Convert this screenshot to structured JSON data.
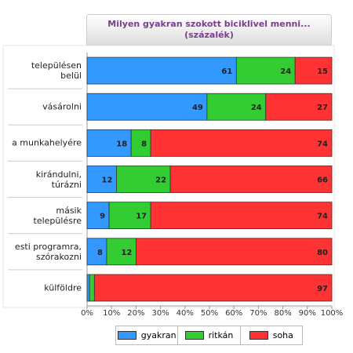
{
  "chart_data": {
    "type": "stacked-barh",
    "title": "Milyen gyakran szokott biciklivel menni...\n(százalék)",
    "categories": [
      "településen\nbelül",
      "vásárolni",
      "a munkahelyére",
      "kirándulni,\ntúrázni",
      "másik\ntelepülésre",
      "esti programra,\nszórakozni",
      "külföldre"
    ],
    "series": [
      {
        "name": "gyakran",
        "color": "#3399ff",
        "values": [
          61,
          49,
          18,
          12,
          9,
          8,
          1
        ]
      },
      {
        "name": "ritkán",
        "color": "#33cc33",
        "values": [
          24,
          24,
          8,
          22,
          17,
          12,
          2
        ]
      },
      {
        "name": "soha",
        "color": "#ff3333",
        "values": [
          15,
          27,
          74,
          66,
          74,
          80,
          97
        ]
      }
    ],
    "xlim": [
      0,
      100
    ],
    "xticks": [
      {
        "value": 0,
        "label": "0%"
      },
      {
        "value": 10,
        "label": "10%"
      },
      {
        "value": 20,
        "label": "20%"
      },
      {
        "value": 30,
        "label": "30%"
      },
      {
        "value": 40,
        "label": "40%"
      },
      {
        "value": 50,
        "label": "50%"
      },
      {
        "value": 60,
        "label": "60%"
      },
      {
        "value": 70,
        "label": "70%"
      },
      {
        "value": 80,
        "label": "80%"
      },
      {
        "value": 90,
        "label": "90%"
      },
      {
        "value": 100,
        "label": "100%"
      }
    ],
    "legend": "bottom"
  }
}
